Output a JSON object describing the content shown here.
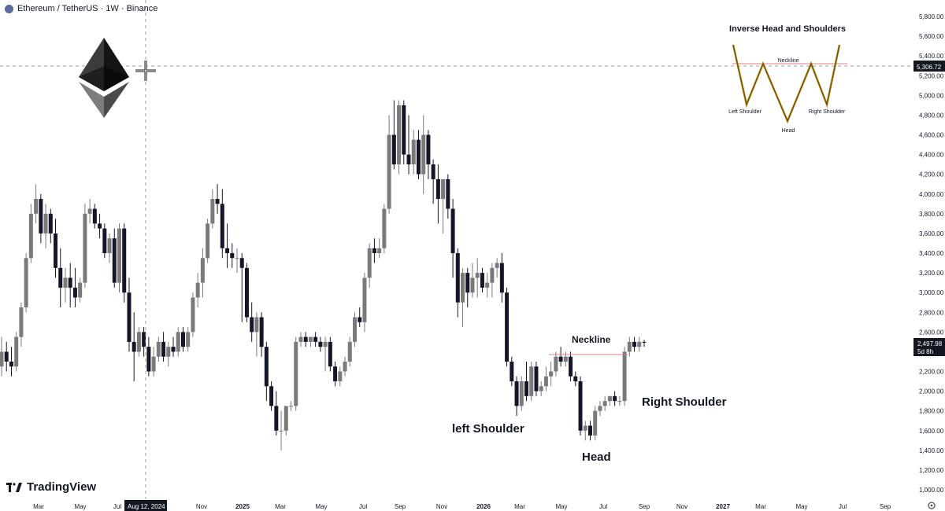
{
  "header": {
    "symbol": "Ethereum / TetherUS · 1W · Binance"
  },
  "brand": {
    "name": "TradingView"
  },
  "crosshair": {
    "x_label": "Aug 12, 2024",
    "y_label": "5,306.72"
  },
  "last_price": {
    "value": "2,497.98",
    "countdown": "5d 8h"
  },
  "colors": {
    "up": "#7a7a7a",
    "down": "#16162a",
    "neckline": "#e08080",
    "price_label": "#131722",
    "crosshair": "#9ea3ad"
  },
  "annotations": {
    "neckline": "Neckline",
    "left_shoulder": "left Shoulder",
    "head": "Head",
    "right_shoulder": "Right Shoulder"
  },
  "inset": {
    "title": "Inverse Head and Shoulders",
    "neckline": "Neckline",
    "left_shoulder": "Left Shoulder",
    "head": "Head",
    "right_shoulder": "Right Shoulder"
  },
  "chart_data": {
    "type": "candlestick",
    "title": "",
    "xlabel": "",
    "ylabel": "",
    "ylim": [
      1000,
      5800
    ],
    "y_ticks": [
      "5,800.00",
      "5,600.00",
      "5,400.00",
      "5,200.00",
      "5,000.00",
      "4,800.00",
      "4,600.00",
      "4,400.00",
      "4,200.00",
      "4,000.00",
      "3,800.00",
      "3,600.00",
      "3,400.00",
      "3,200.00",
      "3,000.00",
      "2,800.00",
      "2,600.00",
      "2,400.00",
      "2,200.00",
      "2,000.00",
      "1,800.00",
      "1,600.00",
      "1,400.00",
      "1,200.00",
      "1,000.00"
    ],
    "x_ticks": [
      "Mar",
      "May",
      "Jul",
      "Nov",
      "2025",
      "Mar",
      "May",
      "Jul",
      "Sep",
      "Nov",
      "2026",
      "Mar",
      "May",
      "Jul",
      "Sep",
      "Nov",
      "2027",
      "Mar",
      "May",
      "Jul",
      "Sep"
    ],
    "neckline_price": 2380,
    "candles": [
      {
        "o": 2250,
        "h": 2550,
        "l": 2150,
        "c": 2400
      },
      {
        "o": 2400,
        "h": 2500,
        "l": 2200,
        "c": 2300
      },
      {
        "o": 2300,
        "h": 2450,
        "l": 2150,
        "c": 2250
      },
      {
        "o": 2250,
        "h": 2600,
        "l": 2200,
        "c": 2550
      },
      {
        "o": 2550,
        "h": 2900,
        "l": 2450,
        "c": 2850
      },
      {
        "o": 2850,
        "h": 3400,
        "l": 2800,
        "c": 3350
      },
      {
        "o": 3350,
        "h": 3900,
        "l": 3300,
        "c": 3800
      },
      {
        "o": 3800,
        "h": 4100,
        "l": 3700,
        "c": 3950
      },
      {
        "o": 3950,
        "h": 4000,
        "l": 3500,
        "c": 3600
      },
      {
        "o": 3600,
        "h": 3900,
        "l": 3450,
        "c": 3800
      },
      {
        "o": 3800,
        "h": 3850,
        "l": 3500,
        "c": 3600
      },
      {
        "o": 3600,
        "h": 3750,
        "l": 3150,
        "c": 3250
      },
      {
        "o": 3250,
        "h": 3450,
        "l": 2850,
        "c": 3050
      },
      {
        "o": 3050,
        "h": 3250,
        "l": 2900,
        "c": 3150
      },
      {
        "o": 3150,
        "h": 3300,
        "l": 2850,
        "c": 3050
      },
      {
        "o": 3050,
        "h": 3250,
        "l": 2850,
        "c": 2950
      },
      {
        "o": 2950,
        "h": 3150,
        "l": 2900,
        "c": 3100
      },
      {
        "o": 3100,
        "h": 3900,
        "l": 3050,
        "c": 3800
      },
      {
        "o": 3800,
        "h": 3950,
        "l": 3700,
        "c": 3850
      },
      {
        "o": 3850,
        "h": 3900,
        "l": 3650,
        "c": 3700
      },
      {
        "o": 3700,
        "h": 3800,
        "l": 3550,
        "c": 3650
      },
      {
        "o": 3650,
        "h": 3700,
        "l": 3350,
        "c": 3400
      },
      {
        "o": 3400,
        "h": 3600,
        "l": 3300,
        "c": 3550
      },
      {
        "o": 3550,
        "h": 3650,
        "l": 3050,
        "c": 3100
      },
      {
        "o": 3100,
        "h": 3700,
        "l": 3000,
        "c": 3650
      },
      {
        "o": 3650,
        "h": 3700,
        "l": 2900,
        "c": 3000
      },
      {
        "o": 3000,
        "h": 3150,
        "l": 2400,
        "c": 2500
      },
      {
        "o": 2500,
        "h": 2800,
        "l": 2100,
        "c": 2400
      },
      {
        "o": 2400,
        "h": 2650,
        "l": 2350,
        "c": 2600
      },
      {
        "o": 2600,
        "h": 2650,
        "l": 2350,
        "c": 2450
      },
      {
        "o": 2450,
        "h": 2550,
        "l": 2150,
        "c": 2200
      },
      {
        "o": 2200,
        "h": 2450,
        "l": 2150,
        "c": 2350
      },
      {
        "o": 2350,
        "h": 2550,
        "l": 2300,
        "c": 2500
      },
      {
        "o": 2500,
        "h": 2600,
        "l": 2300,
        "c": 2350
      },
      {
        "o": 2350,
        "h": 2500,
        "l": 2250,
        "c": 2450
      },
      {
        "o": 2450,
        "h": 2550,
        "l": 2350,
        "c": 2400
      },
      {
        "o": 2400,
        "h": 2650,
        "l": 2350,
        "c": 2600
      },
      {
        "o": 2600,
        "h": 2650,
        "l": 2400,
        "c": 2450
      },
      {
        "o": 2450,
        "h": 2650,
        "l": 2400,
        "c": 2600
      },
      {
        "o": 2600,
        "h": 3000,
        "l": 2550,
        "c": 2950
      },
      {
        "o": 2950,
        "h": 3200,
        "l": 2850,
        "c": 3100
      },
      {
        "o": 3100,
        "h": 3450,
        "l": 2950,
        "c": 3350
      },
      {
        "o": 3350,
        "h": 3750,
        "l": 3300,
        "c": 3700
      },
      {
        "o": 3700,
        "h": 4050,
        "l": 3650,
        "c": 3950
      },
      {
        "o": 3950,
        "h": 4100,
        "l": 3800,
        "c": 3900
      },
      {
        "o": 3900,
        "h": 4050,
        "l": 3350,
        "c": 3450
      },
      {
        "o": 3450,
        "h": 3700,
        "l": 3250,
        "c": 3400
      },
      {
        "o": 3400,
        "h": 3500,
        "l": 3250,
        "c": 3350
      },
      {
        "o": 3350,
        "h": 3450,
        "l": 3200,
        "c": 3350
      },
      {
        "o": 3350,
        "h": 3400,
        "l": 2700,
        "c": 3250
      },
      {
        "o": 3250,
        "h": 3300,
        "l": 2700,
        "c": 2750
      },
      {
        "o": 2750,
        "h": 2900,
        "l": 2500,
        "c": 2600
      },
      {
        "o": 2600,
        "h": 2800,
        "l": 2350,
        "c": 2750
      },
      {
        "o": 2750,
        "h": 2800,
        "l": 2350,
        "c": 2450
      },
      {
        "o": 2450,
        "h": 2500,
        "l": 1900,
        "c": 2050
      },
      {
        "o": 2050,
        "h": 2100,
        "l": 1800,
        "c": 1850
      },
      {
        "o": 1850,
        "h": 2000,
        "l": 1550,
        "c": 1600
      },
      {
        "o": 1600,
        "h": 1800,
        "l": 1400,
        "c": 1600
      },
      {
        "o": 1600,
        "h": 1850,
        "l": 1550,
        "c": 1850
      },
      {
        "o": 1850,
        "h": 1900,
        "l": 1800,
        "c": 1850
      },
      {
        "o": 1850,
        "h": 2550,
        "l": 1800,
        "c": 2500
      },
      {
        "o": 2500,
        "h": 2600,
        "l": 2450,
        "c": 2550
      },
      {
        "o": 2550,
        "h": 2600,
        "l": 2450,
        "c": 2500
      },
      {
        "o": 2500,
        "h": 2550,
        "l": 2450,
        "c": 2550
      },
      {
        "o": 2550,
        "h": 2600,
        "l": 2450,
        "c": 2500
      },
      {
        "o": 2500,
        "h": 2550,
        "l": 2400,
        "c": 2450
      },
      {
        "o": 2450,
        "h": 2550,
        "l": 2200,
        "c": 2500
      },
      {
        "o": 2500,
        "h": 2550,
        "l": 2200,
        "c": 2250
      },
      {
        "o": 2250,
        "h": 2300,
        "l": 2050,
        "c": 2100
      },
      {
        "o": 2100,
        "h": 2250,
        "l": 2050,
        "c": 2200
      },
      {
        "o": 2200,
        "h": 2350,
        "l": 2150,
        "c": 2300
      },
      {
        "o": 2300,
        "h": 2550,
        "l": 2250,
        "c": 2500
      },
      {
        "o": 2500,
        "h": 2800,
        "l": 2450,
        "c": 2750
      },
      {
        "o": 2750,
        "h": 2850,
        "l": 2650,
        "c": 2700
      },
      {
        "o": 2700,
        "h": 3200,
        "l": 2600,
        "c": 3150
      },
      {
        "o": 3150,
        "h": 3500,
        "l": 3050,
        "c": 3450
      },
      {
        "o": 3450,
        "h": 3550,
        "l": 3300,
        "c": 3400
      },
      {
        "o": 3400,
        "h": 3550,
        "l": 3350,
        "c": 3450
      },
      {
        "o": 3450,
        "h": 3900,
        "l": 3400,
        "c": 3850
      },
      {
        "o": 3850,
        "h": 4800,
        "l": 3800,
        "c": 4600
      },
      {
        "o": 4600,
        "h": 4950,
        "l": 4250,
        "c": 4300
      },
      {
        "o": 4300,
        "h": 4950,
        "l": 4200,
        "c": 4900
      },
      {
        "o": 4900,
        "h": 4950,
        "l": 4300,
        "c": 4400
      },
      {
        "o": 4400,
        "h": 4800,
        "l": 4200,
        "c": 4300
      },
      {
        "o": 4300,
        "h": 4650,
        "l": 4200,
        "c": 4550
      },
      {
        "o": 4550,
        "h": 4650,
        "l": 4150,
        "c": 4200
      },
      {
        "o": 4200,
        "h": 4800,
        "l": 4000,
        "c": 4600
      },
      {
        "o": 4600,
        "h": 4650,
        "l": 4150,
        "c": 4300
      },
      {
        "o": 4300,
        "h": 4350,
        "l": 3900,
        "c": 4150
      },
      {
        "o": 4150,
        "h": 4300,
        "l": 3700,
        "c": 3950
      },
      {
        "o": 3950,
        "h": 4150,
        "l": 3600,
        "c": 4150
      },
      {
        "o": 4150,
        "h": 4200,
        "l": 3750,
        "c": 3850
      },
      {
        "o": 3850,
        "h": 3950,
        "l": 3150,
        "c": 3400
      },
      {
        "o": 3400,
        "h": 3450,
        "l": 2750,
        "c": 2900
      },
      {
        "o": 2900,
        "h": 3250,
        "l": 2650,
        "c": 3200
      },
      {
        "o": 3200,
        "h": 3250,
        "l": 2850,
        "c": 3000
      },
      {
        "o": 3000,
        "h": 3300,
        "l": 2950,
        "c": 3150
      },
      {
        "o": 3150,
        "h": 3350,
        "l": 2950,
        "c": 3200
      },
      {
        "o": 3200,
        "h": 3250,
        "l": 3000,
        "c": 3050
      },
      {
        "o": 3050,
        "h": 3200,
        "l": 2950,
        "c": 3100
      },
      {
        "o": 3100,
        "h": 3300,
        "l": 2950,
        "c": 3250
      },
      {
        "o": 3250,
        "h": 3350,
        "l": 3150,
        "c": 3300
      },
      {
        "o": 3300,
        "h": 3400,
        "l": 2900,
        "c": 3000
      },
      {
        "o": 3000,
        "h": 3050,
        "l": 2250,
        "c": 2300
      },
      {
        "o": 2300,
        "h": 2350,
        "l": 2050,
        "c": 2100
      },
      {
        "o": 2100,
        "h": 2150,
        "l": 1750,
        "c": 1850
      },
      {
        "o": 1850,
        "h": 2150,
        "l": 1800,
        "c": 2100
      },
      {
        "o": 2100,
        "h": 2300,
        "l": 1900,
        "c": 1950
      },
      {
        "o": 1950,
        "h": 2300,
        "l": 1900,
        "c": 2250
      },
      {
        "o": 2250,
        "h": 2300,
        "l": 1950,
        "c": 2000
      },
      {
        "o": 2000,
        "h": 2100,
        "l": 1950,
        "c": 2050
      },
      {
        "o": 2050,
        "h": 2250,
        "l": 2000,
        "c": 2150
      },
      {
        "o": 2150,
        "h": 2300,
        "l": 2050,
        "c": 2200
      },
      {
        "o": 2200,
        "h": 2400,
        "l": 2150,
        "c": 2350
      },
      {
        "o": 2350,
        "h": 2450,
        "l": 2250,
        "c": 2300
      },
      {
        "o": 2300,
        "h": 2400,
        "l": 2250,
        "c": 2350
      },
      {
        "o": 2350,
        "h": 2400,
        "l": 2100,
        "c": 2150
      },
      {
        "o": 2150,
        "h": 2200,
        "l": 2050,
        "c": 2100
      },
      {
        "o": 2100,
        "h": 2150,
        "l": 1550,
        "c": 1600
      },
      {
        "o": 1600,
        "h": 1700,
        "l": 1500,
        "c": 1650
      },
      {
        "o": 1650,
        "h": 1700,
        "l": 1500,
        "c": 1550
      },
      {
        "o": 1550,
        "h": 1850,
        "l": 1500,
        "c": 1800
      },
      {
        "o": 1800,
        "h": 1900,
        "l": 1750,
        "c": 1850
      },
      {
        "o": 1850,
        "h": 1950,
        "l": 1800,
        "c": 1900
      },
      {
        "o": 1900,
        "h": 1950,
        "l": 1850,
        "c": 1950
      },
      {
        "o": 1950,
        "h": 2000,
        "l": 1850,
        "c": 1900
      },
      {
        "o": 1900,
        "h": 1950,
        "l": 1850,
        "c": 1900
      },
      {
        "o": 1900,
        "h": 2450,
        "l": 1850,
        "c": 2400
      },
      {
        "o": 2400,
        "h": 2550,
        "l": 2350,
        "c": 2500
      },
      {
        "o": 2500,
        "h": 2550,
        "l": 2400,
        "c": 2450
      },
      {
        "o": 2450,
        "h": 2550,
        "l": 2400,
        "c": 2500
      },
      {
        "o": 2500,
        "h": 2520,
        "l": 2450,
        "c": 2498
      }
    ]
  }
}
